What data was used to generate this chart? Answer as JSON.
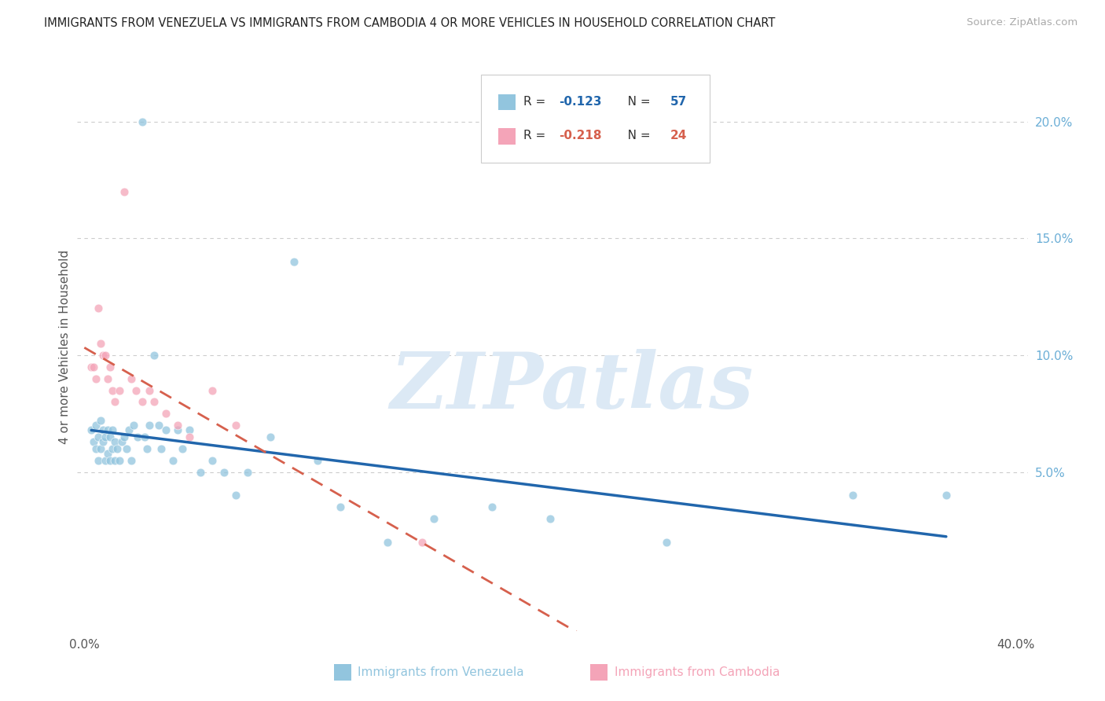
{
  "title": "IMMIGRANTS FROM VENEZUELA VS IMMIGRANTS FROM CAMBODIA 4 OR MORE VEHICLES IN HOUSEHOLD CORRELATION CHART",
  "source": "Source: ZipAtlas.com",
  "ylabel": "4 or more Vehicles in Household",
  "xlim": [
    -0.003,
    0.405
  ],
  "ylim": [
    -0.018,
    0.225
  ],
  "xtick_positions": [
    0.0,
    0.05,
    0.1,
    0.15,
    0.2,
    0.25,
    0.3,
    0.35,
    0.4
  ],
  "xtick_labels": [
    "0.0%",
    "",
    "",
    "",
    "",
    "",
    "",
    "",
    "40.0%"
  ],
  "yticks_right": [
    0.2,
    0.15,
    0.1,
    0.05
  ],
  "ytick_labels_right": [
    "20.0%",
    "15.0%",
    "10.0%",
    "5.0%"
  ],
  "R_venezuela": -0.123,
  "N_venezuela": 57,
  "R_cambodia": -0.218,
  "N_cambodia": 24,
  "color_venezuela": "#92c5de",
  "color_cambodia": "#f4a4b8",
  "trendline_venezuela_color": "#2166ac",
  "trendline_cambodia_color": "#d6604d",
  "legend_label_venezuela": "Immigrants from Venezuela",
  "legend_label_cambodia": "Immigrants from Cambodia",
  "watermark_text": "ZIPatlas",
  "venezuela_x": [
    0.003,
    0.004,
    0.005,
    0.005,
    0.006,
    0.006,
    0.007,
    0.007,
    0.008,
    0.008,
    0.009,
    0.009,
    0.01,
    0.01,
    0.011,
    0.011,
    0.012,
    0.012,
    0.013,
    0.013,
    0.014,
    0.015,
    0.016,
    0.017,
    0.018,
    0.019,
    0.02,
    0.021,
    0.023,
    0.025,
    0.026,
    0.027,
    0.028,
    0.03,
    0.032,
    0.033,
    0.035,
    0.038,
    0.04,
    0.042,
    0.045,
    0.05,
    0.055,
    0.06,
    0.065,
    0.07,
    0.08,
    0.09,
    0.1,
    0.11,
    0.13,
    0.15,
    0.175,
    0.2,
    0.25,
    0.33,
    0.37
  ],
  "venezuela_y": [
    0.068,
    0.063,
    0.07,
    0.06,
    0.065,
    0.055,
    0.072,
    0.06,
    0.068,
    0.063,
    0.065,
    0.055,
    0.068,
    0.058,
    0.065,
    0.055,
    0.068,
    0.06,
    0.063,
    0.055,
    0.06,
    0.055,
    0.063,
    0.065,
    0.06,
    0.068,
    0.055,
    0.07,
    0.065,
    0.2,
    0.065,
    0.06,
    0.07,
    0.1,
    0.07,
    0.06,
    0.068,
    0.055,
    0.068,
    0.06,
    0.068,
    0.05,
    0.055,
    0.05,
    0.04,
    0.05,
    0.065,
    0.14,
    0.055,
    0.035,
    0.02,
    0.03,
    0.035,
    0.03,
    0.02,
    0.04,
    0.04
  ],
  "cambodia_x": [
    0.003,
    0.004,
    0.005,
    0.006,
    0.007,
    0.008,
    0.009,
    0.01,
    0.011,
    0.012,
    0.013,
    0.015,
    0.017,
    0.02,
    0.022,
    0.025,
    0.028,
    0.03,
    0.035,
    0.04,
    0.045,
    0.055,
    0.065,
    0.145
  ],
  "cambodia_y": [
    0.095,
    0.095,
    0.09,
    0.12,
    0.105,
    0.1,
    0.1,
    0.09,
    0.095,
    0.085,
    0.08,
    0.085,
    0.17,
    0.09,
    0.085,
    0.08,
    0.085,
    0.08,
    0.075,
    0.07,
    0.065,
    0.085,
    0.07,
    0.02
  ],
  "trendline_ven_x0": 0.003,
  "trendline_ven_x1": 0.37,
  "trendline_cam_x0": 0.0,
  "trendline_cam_x1": 0.405
}
